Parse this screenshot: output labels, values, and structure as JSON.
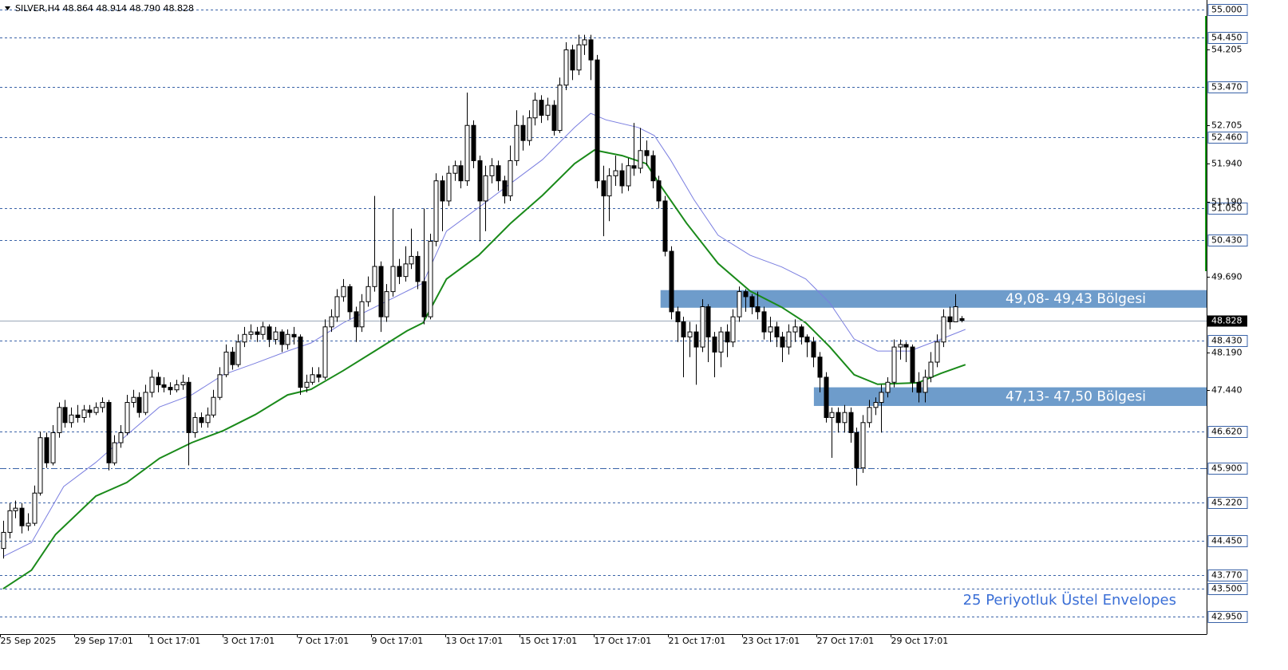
{
  "chart_data": {
    "type": "candlestick",
    "title": "SILVER,H4  48.864 48.914 48.790 48.828",
    "annotation": "25 Periyotluk Üstel Envelopes",
    "xlim": [
      -0.5,
      194.6
    ],
    "ylim": [
      42.6,
      55.19
    ],
    "xticks": [
      {
        "value": 0,
        "label": "25 Sep 2025"
      },
      {
        "value": 12,
        "label": "29 Sep 17:01"
      },
      {
        "value": 24,
        "label": "1 Oct 17:01"
      },
      {
        "value": 36,
        "label": "3 Oct 17:01"
      },
      {
        "value": 48,
        "label": "7 Oct 17:01"
      },
      {
        "value": 60,
        "label": "9 Oct 17:01"
      },
      {
        "value": 72,
        "label": "13 Oct 17:01"
      },
      {
        "value": 84,
        "label": "15 Oct 17:01"
      },
      {
        "value": 96,
        "label": "17 Oct 17:01"
      },
      {
        "value": 108,
        "label": "21 Oct 17:01"
      },
      {
        "value": 120,
        "label": "23 Oct 17:01"
      },
      {
        "value": 132,
        "label": "27 Oct 17:01"
      },
      {
        "value": 144,
        "label": "29 Oct 17:01"
      }
    ],
    "yticks": [
      {
        "value": 54.205,
        "label": "54.205"
      },
      {
        "value": 52.705,
        "label": "52.705"
      },
      {
        "value": 51.94,
        "label": "51.940"
      },
      {
        "value": 51.19,
        "label": "51.190"
      },
      {
        "value": 49.69,
        "label": "49.690"
      },
      {
        "value": 48.19,
        "label": "48.190"
      },
      {
        "value": 47.44,
        "label": "47.440"
      }
    ],
    "levels": [
      {
        "value": 55,
        "label": "55.000"
      },
      {
        "value": 54.45,
        "label": "54.450"
      },
      {
        "value": 53.47,
        "label": "53.470"
      },
      {
        "value": 52.46,
        "label": "52.460"
      },
      {
        "value": 51.05,
        "label": "51.050"
      },
      {
        "value": 50.43,
        "label": "50.430"
      },
      {
        "value": 48.43,
        "label": "48.430"
      },
      {
        "value": 46.62,
        "label": "46.620"
      },
      {
        "value": 45.9,
        "label": "45.900",
        "style": "dashdot"
      },
      {
        "value": 45.22,
        "label": "45.220"
      },
      {
        "value": 44.45,
        "label": "44.450"
      },
      {
        "value": 43.77,
        "label": "43.770"
      },
      {
        "value": 43.5,
        "label": "43.500"
      },
      {
        "value": 42.95,
        "label": "42.950"
      }
    ],
    "current_price": {
      "value": 48.828,
      "label": "48.828"
    },
    "level_color": "#3a63a8",
    "zone_color": "#6e9ccb",
    "zones": [
      {
        "from": 49.08,
        "to": 49.43,
        "x_start": 106.3,
        "label": "49,08- 49,43 Bölgesi"
      },
      {
        "from": 47.13,
        "to": 47.5,
        "x_start": 131.1,
        "label": "47,13- 47,50 Bölgesi"
      }
    ],
    "lines": [
      {
        "color": "#1a8a1a",
        "width": 2,
        "x": [
          0,
          4.6,
          8.5,
          15,
          20,
          25.3,
          30.5,
          35.6,
          40.8,
          46,
          49.8,
          55,
          60.1,
          65.3,
          67.9,
          71.7,
          76.9,
          82.1,
          87.2,
          92.4,
          95.6,
          100.1,
          104,
          106.5,
          110.5,
          115.6,
          120.8,
          125.9,
          129.8,
          133.7,
          137.6,
          141.4,
          147.9,
          151.7,
          155.6
        ],
        "values": [
          43.5,
          43.87,
          44.58,
          45.34,
          45.61,
          46.09,
          46.4,
          46.64,
          46.96,
          47.35,
          47.46,
          47.83,
          48.22,
          48.62,
          48.78,
          49.65,
          50.12,
          50.76,
          51.31,
          51.94,
          52.21,
          52.1,
          51.94,
          51.47,
          50.76,
          49.96,
          49.41,
          49.09,
          48.78,
          48.3,
          47.75,
          47.56,
          47.59,
          47.78,
          47.95
        ]
      },
      {
        "color": "#7b7fe0",
        "width": 1,
        "x": [
          0,
          4.6,
          9.8,
          15,
          20.1,
          25.3,
          30.5,
          35.6,
          40.8,
          46,
          49.8,
          55,
          60.1,
          65.3,
          67.9,
          71.7,
          76.9,
          82.1,
          87.2,
          92.4,
          95,
          97.5,
          102.7,
          105.3,
          107.9,
          111.7,
          115.6,
          120.8,
          125.9,
          129.8,
          133.7,
          137.6,
          141.4,
          146.6,
          151.7,
          155.6
        ],
        "values": [
          44.14,
          44.42,
          45.53,
          46.01,
          46.56,
          47.11,
          47.35,
          47.75,
          47.98,
          48.22,
          48.38,
          48.78,
          49.09,
          49.41,
          49.57,
          50.6,
          51.07,
          51.55,
          52.02,
          52.66,
          52.94,
          52.81,
          52.66,
          52.5,
          52.02,
          51.23,
          50.52,
          50.12,
          49.89,
          49.65,
          49.17,
          48.46,
          48.22,
          48.22,
          48.46,
          48.65
        ]
      }
    ],
    "candles": [
      [
        44.3,
        44.85,
        44.1,
        44.62
      ],
      [
        44.62,
        45.2,
        44.5,
        45.05
      ],
      [
        45.05,
        45.25,
        44.9,
        45.1
      ],
      [
        45.1,
        45.2,
        44.6,
        44.75
      ],
      [
        44.75,
        45.0,
        44.65,
        44.8
      ],
      [
        44.8,
        45.55,
        44.75,
        45.4
      ],
      [
        45.4,
        46.62,
        45.35,
        46.5
      ],
      [
        46.5,
        46.6,
        45.9,
        46.0
      ],
      [
        46.0,
        46.75,
        45.95,
        46.6
      ],
      [
        46.6,
        47.2,
        46.5,
        47.1
      ],
      [
        47.1,
        47.25,
        46.7,
        46.8
      ],
      [
        46.8,
        47.1,
        46.7,
        46.95
      ],
      [
        46.95,
        47.15,
        46.8,
        46.9
      ],
      [
        46.9,
        47.15,
        46.8,
        47.05
      ],
      [
        47.05,
        47.15,
        46.9,
        47.0
      ],
      [
        47.0,
        47.2,
        46.95,
        47.1
      ],
      [
        47.1,
        47.3,
        47.0,
        47.2
      ],
      [
        47.2,
        47.25,
        45.85,
        46.0
      ],
      [
        46.0,
        46.55,
        45.95,
        46.4
      ],
      [
        46.4,
        46.75,
        46.3,
        46.6
      ],
      [
        46.6,
        47.35,
        46.55,
        47.2
      ],
      [
        47.2,
        47.45,
        47.1,
        47.3
      ],
      [
        47.3,
        47.4,
        46.9,
        47.0
      ],
      [
        47.0,
        47.55,
        46.95,
        47.4
      ],
      [
        47.4,
        47.85,
        47.3,
        47.7
      ],
      [
        47.7,
        47.8,
        47.4,
        47.55
      ],
      [
        47.55,
        47.7,
        47.4,
        47.5
      ],
      [
        47.5,
        47.6,
        47.35,
        47.45
      ],
      [
        47.45,
        47.65,
        47.4,
        47.55
      ],
      [
        47.55,
        47.75,
        47.45,
        47.6
      ],
      [
        47.6,
        47.7,
        45.95,
        46.6
      ],
      [
        46.6,
        47.0,
        46.5,
        46.9
      ],
      [
        46.9,
        47.0,
        46.7,
        46.8
      ],
      [
        46.8,
        47.1,
        46.7,
        46.95
      ],
      [
        46.95,
        47.45,
        46.9,
        47.3
      ],
      [
        47.3,
        47.9,
        47.25,
        47.75
      ],
      [
        47.75,
        48.35,
        47.7,
        48.2
      ],
      [
        48.2,
        48.3,
        47.85,
        47.95
      ],
      [
        47.95,
        48.55,
        47.9,
        48.4
      ],
      [
        48.4,
        48.7,
        48.3,
        48.55
      ],
      [
        48.55,
        48.75,
        48.45,
        48.6
      ],
      [
        48.6,
        48.7,
        48.4,
        48.55
      ],
      [
        48.55,
        48.8,
        48.45,
        48.7
      ],
      [
        48.7,
        48.75,
        48.3,
        48.45
      ],
      [
        48.45,
        48.7,
        48.35,
        48.6
      ],
      [
        48.6,
        48.65,
        48.2,
        48.35
      ],
      [
        48.35,
        48.65,
        48.25,
        48.55
      ],
      [
        48.55,
        48.7,
        48.35,
        48.5
      ],
      [
        48.5,
        48.55,
        47.35,
        47.5
      ],
      [
        47.5,
        47.75,
        47.4,
        47.6
      ],
      [
        47.6,
        47.9,
        47.55,
        47.75
      ],
      [
        47.75,
        47.9,
        47.6,
        47.7
      ],
      [
        47.7,
        48.85,
        47.65,
        48.7
      ],
      [
        48.7,
        49.05,
        48.6,
        48.9
      ],
      [
        48.9,
        49.45,
        48.8,
        49.3
      ],
      [
        49.3,
        49.65,
        49.2,
        49.5
      ],
      [
        49.5,
        49.55,
        48.85,
        49.0
      ],
      [
        49.0,
        49.1,
        48.4,
        48.7
      ],
      [
        48.7,
        49.35,
        48.6,
        49.2
      ],
      [
        49.2,
        49.7,
        49.1,
        49.5
      ],
      [
        49.5,
        51.3,
        49.4,
        49.9
      ],
      [
        49.9,
        50.0,
        48.6,
        48.9
      ],
      [
        48.9,
        49.55,
        48.8,
        49.4
      ],
      [
        49.4,
        51.05,
        49.3,
        49.9
      ],
      [
        49.9,
        50.05,
        49.55,
        49.7
      ],
      [
        49.7,
        50.3,
        49.6,
        49.95
      ],
      [
        49.95,
        50.65,
        49.85,
        50.1
      ],
      [
        50.1,
        50.2,
        49.45,
        49.6
      ],
      [
        49.6,
        51.05,
        48.75,
        48.9
      ],
      [
        48.9,
        50.55,
        48.85,
        50.4
      ],
      [
        50.4,
        51.75,
        50.3,
        51.6
      ],
      [
        51.6,
        51.7,
        50.6,
        51.2
      ],
      [
        51.2,
        51.9,
        51.1,
        51.75
      ],
      [
        51.75,
        52.0,
        51.6,
        51.9
      ],
      [
        51.9,
        52.0,
        51.45,
        51.6
      ],
      [
        51.6,
        53.35,
        51.5,
        52.7
      ],
      [
        52.7,
        52.8,
        51.85,
        52.0
      ],
      [
        52.0,
        52.1,
        50.4,
        51.2
      ],
      [
        51.2,
        51.9,
        50.6,
        51.7
      ],
      [
        51.7,
        52.05,
        51.55,
        51.9
      ],
      [
        51.9,
        52.0,
        51.4,
        51.6
      ],
      [
        51.6,
        51.7,
        51.15,
        51.3
      ],
      [
        51.3,
        52.3,
        51.2,
        52.0
      ],
      [
        52.0,
        53.0,
        51.9,
        52.7
      ],
      [
        52.7,
        52.9,
        52.2,
        52.4
      ],
      [
        52.4,
        53.0,
        52.3,
        52.85
      ],
      [
        52.85,
        53.35,
        52.7,
        53.2
      ],
      [
        53.2,
        53.3,
        52.75,
        52.9
      ],
      [
        52.9,
        53.25,
        52.8,
        53.1
      ],
      [
        53.1,
        53.2,
        52.5,
        52.6
      ],
      [
        52.6,
        53.65,
        52.55,
        53.5
      ],
      [
        53.5,
        54.35,
        53.4,
        54.2
      ],
      [
        54.2,
        54.3,
        53.6,
        53.8
      ],
      [
        53.8,
        54.5,
        53.7,
        54.3
      ],
      [
        54.3,
        54.5,
        54.1,
        54.4
      ],
      [
        54.4,
        54.5,
        53.6,
        54.0
      ],
      [
        54.0,
        54.1,
        51.45,
        51.6
      ],
      [
        51.6,
        51.9,
        50.5,
        51.3
      ],
      [
        51.3,
        51.85,
        50.8,
        51.7
      ],
      [
        51.7,
        52.1,
        51.5,
        51.8
      ],
      [
        51.8,
        51.95,
        51.35,
        51.5
      ],
      [
        51.5,
        52.05,
        51.4,
        51.9
      ],
      [
        51.9,
        52.75,
        51.7,
        51.85
      ],
      [
        51.85,
        52.65,
        51.75,
        52.2
      ],
      [
        52.2,
        52.4,
        51.9,
        52.1
      ],
      [
        52.1,
        52.2,
        51.45,
        51.6
      ],
      [
        51.6,
        51.7,
        51.05,
        51.2
      ],
      [
        51.2,
        51.3,
        50.1,
        50.2
      ],
      [
        50.2,
        50.3,
        48.85,
        49.0
      ],
      [
        49.0,
        49.1,
        48.4,
        48.8
      ],
      [
        48.8,
        48.9,
        47.7,
        48.5
      ],
      [
        48.5,
        48.8,
        48.1,
        48.6
      ],
      [
        48.6,
        48.75,
        47.55,
        48.3
      ],
      [
        48.3,
        49.25,
        48.2,
        49.1
      ],
      [
        49.1,
        49.15,
        48.0,
        48.5
      ],
      [
        48.5,
        48.6,
        47.7,
        48.2
      ],
      [
        48.2,
        48.7,
        47.9,
        48.6
      ],
      [
        48.6,
        48.75,
        48.1,
        48.4
      ],
      [
        48.4,
        49.05,
        48.3,
        48.9
      ],
      [
        48.9,
        49.5,
        48.8,
        49.4
      ],
      [
        49.4,
        49.45,
        49.0,
        49.3
      ],
      [
        49.3,
        49.35,
        48.95,
        49.1
      ],
      [
        49.1,
        49.4,
        48.85,
        49.0
      ],
      [
        49.0,
        49.1,
        48.45,
        48.6
      ],
      [
        48.6,
        48.9,
        48.4,
        48.7
      ],
      [
        48.7,
        48.8,
        48.3,
        48.5
      ],
      [
        48.5,
        48.6,
        48.0,
        48.3
      ],
      [
        48.3,
        48.75,
        48.15,
        48.6
      ],
      [
        48.6,
        48.85,
        48.4,
        48.7
      ],
      [
        48.7,
        48.75,
        48.35,
        48.5
      ],
      [
        48.5,
        48.55,
        48.1,
        48.4
      ],
      [
        48.4,
        48.5,
        47.9,
        48.1
      ],
      [
        48.1,
        48.2,
        47.4,
        47.7
      ],
      [
        47.7,
        47.8,
        46.8,
        46.9
      ],
      [
        46.9,
        47.1,
        46.1,
        47.0
      ],
      [
        47.0,
        47.1,
        46.6,
        46.8
      ],
      [
        46.8,
        47.15,
        46.6,
        47.0
      ],
      [
        47.0,
        47.1,
        46.4,
        46.6
      ],
      [
        46.6,
        46.7,
        45.55,
        45.9
      ],
      [
        45.9,
        46.95,
        45.8,
        46.8
      ],
      [
        46.8,
        47.25,
        46.7,
        47.1
      ],
      [
        47.1,
        47.3,
        46.95,
        47.2
      ],
      [
        47.2,
        47.55,
        46.6,
        47.4
      ],
      [
        47.4,
        47.7,
        47.3,
        47.6
      ],
      [
        47.6,
        48.45,
        47.5,
        48.3
      ],
      [
        48.3,
        48.45,
        48.05,
        48.35
      ],
      [
        48.35,
        48.4,
        48.0,
        48.3
      ],
      [
        48.3,
        48.35,
        47.4,
        47.6
      ],
      [
        47.6,
        47.8,
        47.2,
        47.4
      ],
      [
        47.4,
        47.85,
        47.2,
        47.7
      ],
      [
        47.7,
        48.2,
        47.6,
        48.0
      ],
      [
        48.0,
        48.55,
        47.9,
        48.4
      ],
      [
        48.4,
        49.05,
        48.3,
        48.9
      ],
      [
        48.9,
        49.1,
        48.65,
        48.8
      ],
      [
        48.8,
        49.35,
        48.8,
        49.1
      ],
      [
        48.864,
        48.914,
        48.79,
        48.828
      ]
    ]
  }
}
